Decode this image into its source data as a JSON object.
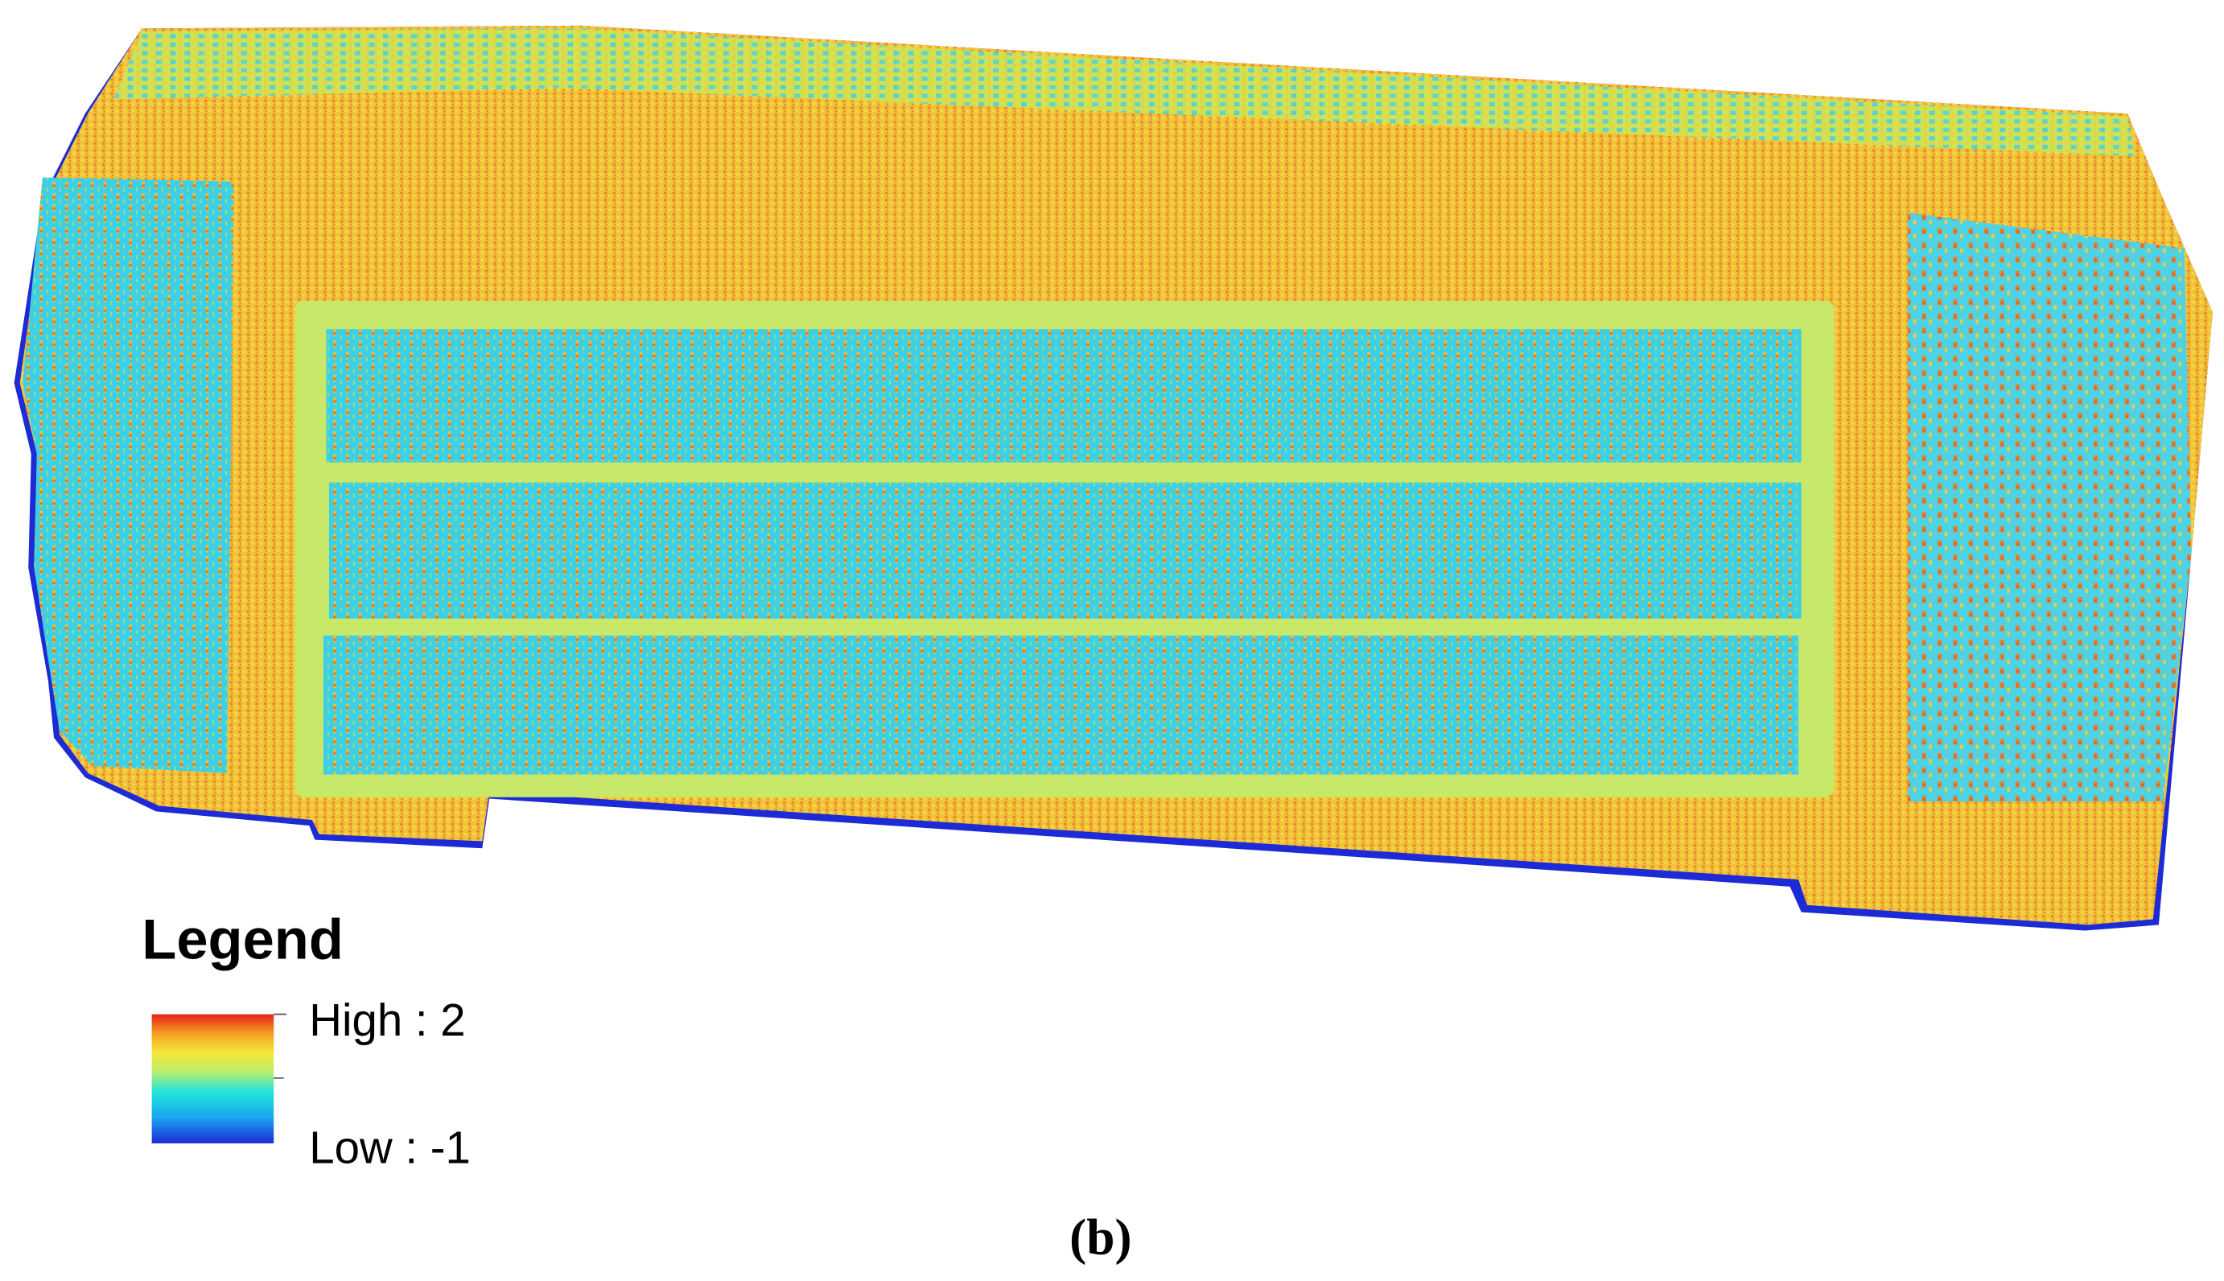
{
  "legend": {
    "title": "Legend",
    "high_label": "High : 2",
    "low_label": "Low : -1"
  },
  "caption": "(b)"
}
